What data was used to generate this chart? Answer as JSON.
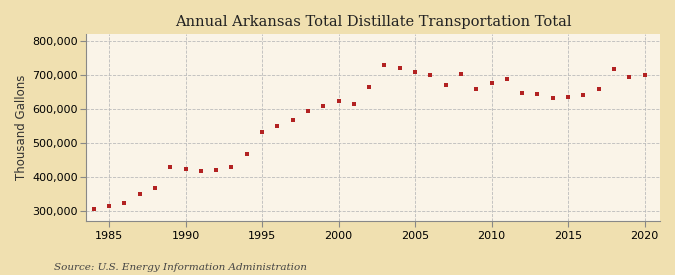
{
  "title": "Annual Arkansas Total Distillate Transportation Total",
  "ylabel": "Thousand Gallons",
  "source": "Source: U.S. Energy Information Administration",
  "outer_background": "#f0e0b0",
  "plot_background": "#faf4e8",
  "marker_color": "#b22222",
  "years": [
    1984,
    1985,
    1986,
    1987,
    1988,
    1989,
    1990,
    1991,
    1992,
    1993,
    1994,
    1995,
    1996,
    1997,
    1998,
    1999,
    2000,
    2001,
    2002,
    2003,
    2004,
    2005,
    2006,
    2007,
    2008,
    2009,
    2010,
    2011,
    2012,
    2013,
    2014,
    2015,
    2016,
    2017,
    2018,
    2019,
    2020
  ],
  "values": [
    305000,
    313000,
    322000,
    350000,
    367000,
    430000,
    422000,
    418000,
    420000,
    428000,
    466000,
    533000,
    550000,
    568000,
    595000,
    610000,
    625000,
    615000,
    665000,
    730000,
    720000,
    710000,
    700000,
    672000,
    703000,
    660000,
    678000,
    688000,
    648000,
    644000,
    633000,
    634000,
    642000,
    658000,
    718000,
    695000,
    700000
  ],
  "ylim": [
    270000,
    820000
  ],
  "yticks": [
    300000,
    400000,
    500000,
    600000,
    700000,
    800000
  ],
  "xticks": [
    1985,
    1990,
    1995,
    2000,
    2005,
    2010,
    2015,
    2020
  ],
  "xlim": [
    1983.5,
    2021
  ],
  "title_fontsize": 10.5,
  "ylabel_fontsize": 8.5,
  "tick_fontsize": 8,
  "source_fontsize": 7.5,
  "grid_color": "#bbbbbb",
  "spine_color": "#888888"
}
